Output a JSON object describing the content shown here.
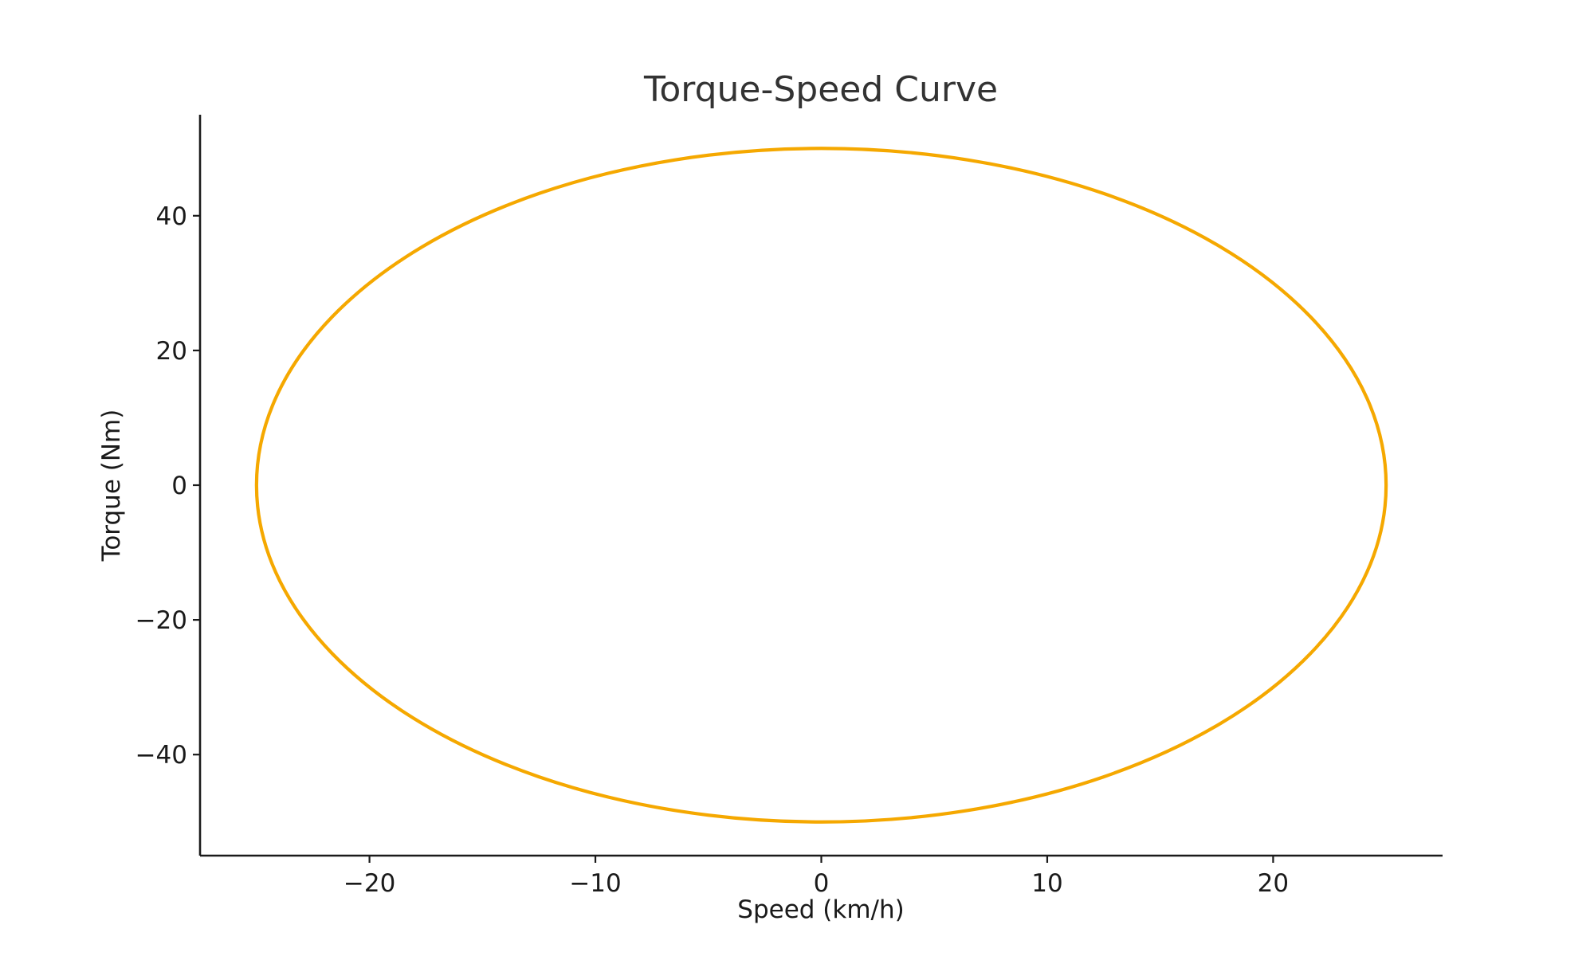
{
  "chart_data": {
    "type": "line",
    "title": "Torque-Speed Curve",
    "xlabel": "Speed (km/h)",
    "ylabel": "Torque (Nm)",
    "xlim": [
      -27.5,
      27.5
    ],
    "ylim": [
      -55,
      55
    ],
    "xticks": [
      -20,
      -10,
      0,
      10,
      20
    ],
    "yticks": [
      -40,
      -20,
      0,
      20,
      40
    ],
    "xtick_labels": [
      "−20",
      "−10",
      "0",
      "10",
      "20"
    ],
    "ytick_labels": [
      "−40",
      "−20",
      "0",
      "20",
      "40"
    ],
    "grid": false,
    "legend": "none",
    "series": [
      {
        "color": "#f5a800",
        "shape": "ellipse",
        "x": [
          25,
          24.15,
          21.65,
          17.68,
          12.5,
          6.47,
          0,
          -6.47,
          -12.5,
          -17.68,
          -21.65,
          -24.15,
          -25,
          -24.15,
          -21.65,
          -17.68,
          -12.5,
          -6.47,
          0,
          6.47,
          12.5,
          17.68,
          21.65,
          24.15,
          25
        ],
        "y": [
          0,
          12.94,
          25,
          35.36,
          43.3,
          48.3,
          50,
          48.3,
          43.3,
          35.36,
          25,
          12.94,
          0,
          -12.94,
          -25,
          -35.36,
          -43.3,
          -48.3,
          -50,
          -48.3,
          -43.3,
          -35.36,
          -25,
          -12.94,
          0
        ]
      }
    ]
  }
}
